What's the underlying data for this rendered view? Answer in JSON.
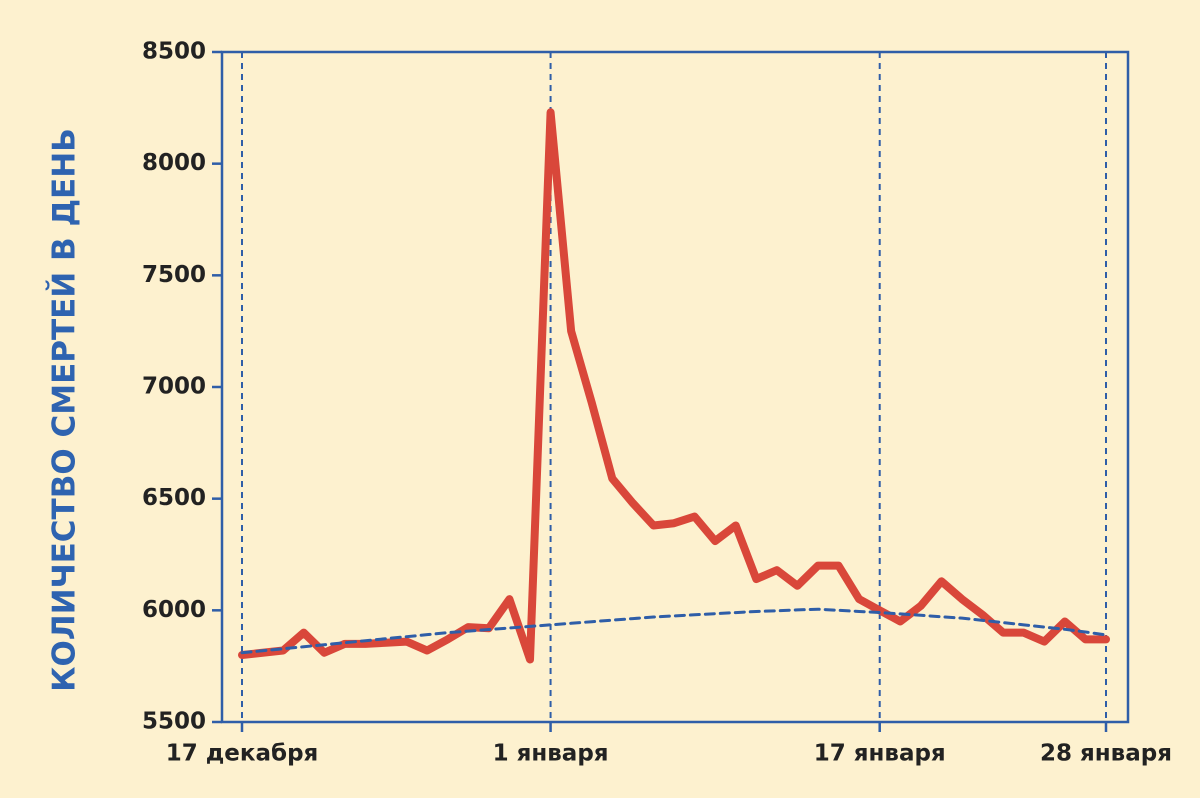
{
  "chart_data": {
    "type": "line",
    "ylabel": "КОЛИЧЕСТВО СМЕРТЕЙ В ДЕНЬ",
    "categories": [
      "17 декабря",
      null,
      null,
      null,
      null,
      null,
      null,
      null,
      null,
      null,
      null,
      null,
      null,
      null,
      null,
      "1 января",
      null,
      null,
      null,
      null,
      null,
      null,
      null,
      null,
      null,
      null,
      null,
      null,
      null,
      null,
      null,
      "17 января",
      null,
      null,
      null,
      null,
      null,
      null,
      null,
      null,
      null,
      null,
      "28 января"
    ],
    "series": [
      {
        "color": "#d9473a",
        "style": "solid",
        "values": [
          5800,
          5810,
          5820,
          5900,
          5810,
          5850,
          5850,
          5855,
          5860,
          5820,
          5870,
          5925,
          5920,
          6050,
          5780,
          8230,
          7250,
          6930,
          6590,
          6480,
          6380,
          6390,
          6420,
          6310,
          6380,
          6140,
          6180,
          6110,
          6200,
          6200,
          6050,
          6000,
          5950,
          6020,
          6130,
          6050,
          5980,
          5900,
          5900,
          5860,
          5950,
          5870,
          5870
        ]
      },
      {
        "color": "#2f5ea8",
        "style": "dashed",
        "values": [
          5810,
          5819,
          5828,
          5837,
          5846,
          5855,
          5864,
          5873,
          5882,
          5891,
          5900,
          5907,
          5914,
          5921,
          5928,
          5935,
          5942,
          5949,
          5956,
          5963,
          5970,
          5975,
          5980,
          5985,
          5990,
          5995,
          5998,
          6002,
          6005,
          6000,
          5995,
          5990,
          5984,
          5978,
          5971,
          5965,
          5955,
          5945,
          5935,
          5925,
          5915,
          5903,
          5890
        ]
      }
    ],
    "ylim": [
      5500,
      8500
    ],
    "yticks": [
      5500,
      6000,
      6500,
      7000,
      7500,
      8000,
      8500
    ],
    "category_grid": true,
    "axis_color": "#2f5ea8"
  }
}
